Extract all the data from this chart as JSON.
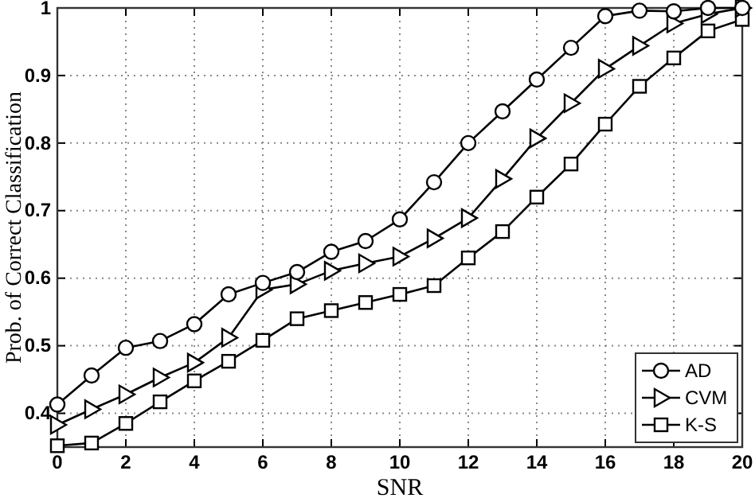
{
  "chart_data": {
    "type": "line",
    "xlabel": "SNR",
    "ylabel": "Prob. of Correct Classification",
    "x": [
      0,
      1,
      2,
      3,
      4,
      5,
      6,
      7,
      8,
      9,
      10,
      11,
      12,
      13,
      14,
      15,
      16,
      17,
      18,
      19,
      20
    ],
    "xlim": [
      0,
      20
    ],
    "xticks": [
      0,
      2,
      4,
      6,
      8,
      10,
      12,
      14,
      16,
      18,
      20
    ],
    "ylim": [
      0.35,
      1
    ],
    "yticks": [
      0.4,
      0.5,
      0.6,
      0.7,
      0.8,
      0.9,
      1
    ],
    "grid": true,
    "legend": "bottom right",
    "line_style": "solid",
    "series": [
      {
        "name": "AD",
        "color": "#000000",
        "marker": "circle",
        "values": [
          0.413,
          0.456,
          0.497,
          0.507,
          0.532,
          0.576,
          0.593,
          0.609,
          0.639,
          0.655,
          0.687,
          0.742,
          0.8,
          0.847,
          0.894,
          0.941,
          0.988,
          0.996,
          0.995,
          1.0,
          1.0
        ]
      },
      {
        "name": "CVM",
        "color": "#000000",
        "marker": "triangle",
        "values": [
          0.383,
          0.406,
          0.428,
          0.453,
          0.475,
          0.512,
          0.583,
          0.591,
          0.611,
          0.622,
          0.632,
          0.659,
          0.689,
          0.747,
          0.807,
          0.859,
          0.91,
          0.944,
          0.977,
          0.991,
          1.0
        ]
      },
      {
        "name": "K-S",
        "color": "#000000",
        "marker": "square",
        "values": [
          0.352,
          0.356,
          0.385,
          0.417,
          0.448,
          0.477,
          0.508,
          0.54,
          0.552,
          0.564,
          0.576,
          0.589,
          0.63,
          0.669,
          0.72,
          0.769,
          0.828,
          0.884,
          0.926,
          0.966,
          0.983
        ]
      }
    ]
  }
}
